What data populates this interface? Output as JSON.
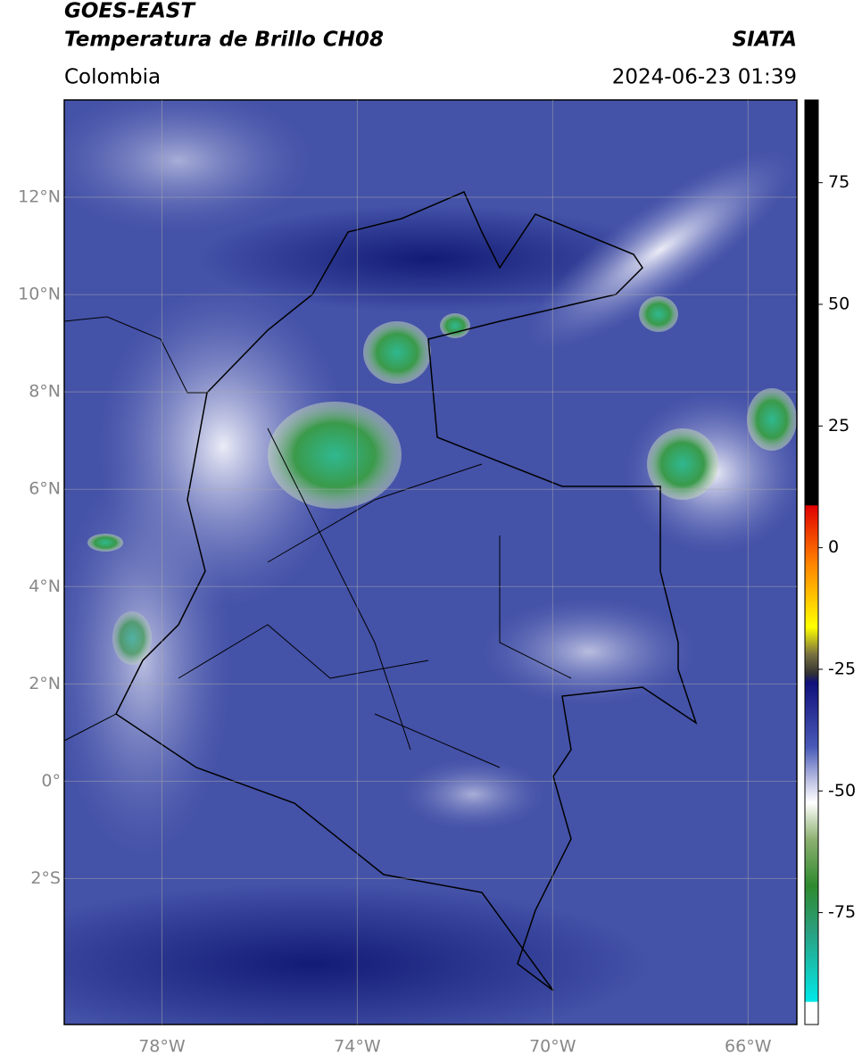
{
  "header": {
    "title1": "GOES-EAST",
    "title2": "Temperatura de Brillo CH08",
    "source": "SIATA",
    "region": "Colombia",
    "datetime": "2024-06-23 01:39"
  },
  "map": {
    "lonlim": [
      -80,
      -65
    ],
    "latlim": [
      -5,
      14
    ],
    "lonticks": [
      {
        "value": -78,
        "label": "78°W"
      },
      {
        "value": -74,
        "label": "74°W"
      },
      {
        "value": -70,
        "label": "70°W"
      },
      {
        "value": -66,
        "label": "66°W"
      }
    ],
    "latticks": [
      {
        "value": 12,
        "label": "12°N"
      },
      {
        "value": 10,
        "label": "10°N"
      },
      {
        "value": 8,
        "label": "8°N"
      },
      {
        "value": 6,
        "label": "6°N"
      },
      {
        "value": 4,
        "label": "4°N"
      },
      {
        "value": 2,
        "label": "2°N"
      },
      {
        "value": 0,
        "label": "0°"
      },
      {
        "value": -2,
        "label": "2°S"
      }
    ]
  },
  "colorbar": {
    "lim": [
      -98,
      92
    ],
    "ticks": [
      75,
      50,
      25,
      0,
      -25,
      -50,
      -75
    ]
  }
}
